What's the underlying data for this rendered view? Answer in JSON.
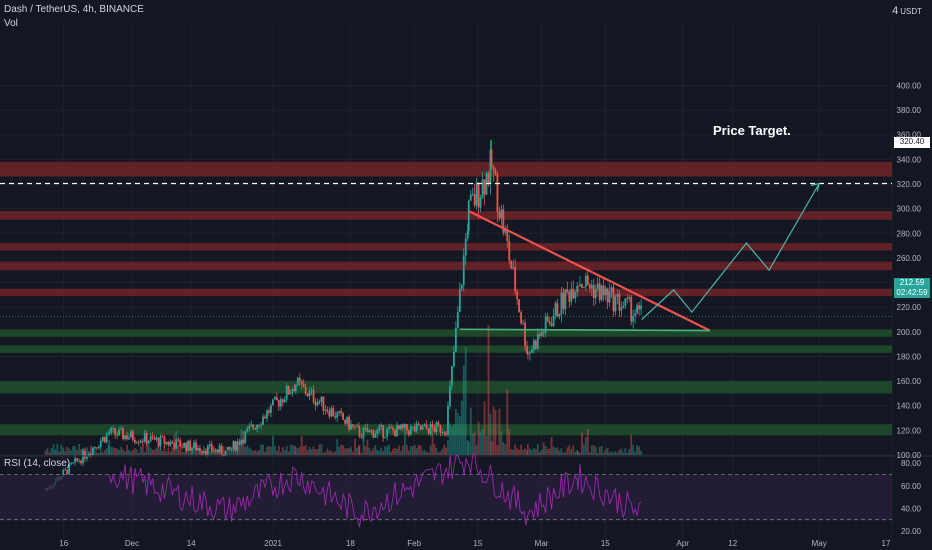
{
  "header": {
    "title": "Dash / TetherUS, 4h, BINANCE",
    "volume_label": "Vol",
    "currency": "USDT",
    "currency_prefix": "4"
  },
  "price_target_label": "Price Target.",
  "target_price": "320.40",
  "current_price": "212.59",
  "countdown": "02:42:59",
  "colors": {
    "background": "#131722",
    "up": "#26a69a",
    "down": "#ef5350",
    "resistance_zone": "#6b2228",
    "support_zone": "#1f4d2b",
    "trendline_down": "#f0524f",
    "trendline_support": "#4caf7e",
    "projection": "#4db6ac",
    "rsi_line": "#9c27b0",
    "rsi_band": "#2a1f3d"
  },
  "chart_data": [
    {
      "type": "candlestick",
      "title": "Dash / TetherUS, 4h, BINANCE",
      "x_tick_labels": [
        "16",
        "Dec",
        "14",
        "2021",
        "18",
        "Feb",
        "15",
        "Mar",
        "15",
        "Apr",
        "12",
        "May",
        "17"
      ],
      "y_tick_labels": [
        "100.00",
        "120.00",
        "140.00",
        "160.00",
        "180.00",
        "200.00",
        "220.00",
        "240.00",
        "260.00",
        "280.00",
        "300.00",
        "320.00",
        "340.00",
        "360.00",
        "380.00",
        "400.00"
      ],
      "ylim": [
        100,
        405
      ],
      "key_points": [
        {
          "date": "2020-11-12",
          "price": 72
        },
        {
          "date": "2020-11-26",
          "price": 118
        },
        {
          "date": "2020-12-22",
          "price": 102
        },
        {
          "date": "2021-01-06",
          "price": 158
        },
        {
          "date": "2021-01-20",
          "price": 118
        },
        {
          "date": "2021-02-08",
          "price": 122
        },
        {
          "date": "2021-02-13",
          "price": 298
        },
        {
          "date": "2021-02-18",
          "price": 335
        },
        {
          "date": "2021-02-26",
          "price": 183
        },
        {
          "date": "2021-03-09",
          "price": 243
        },
        {
          "date": "2021-03-23",
          "price": 212.59
        }
      ],
      "horizontal_levels": [
        {
          "type": "resistance",
          "low": 326,
          "high": 338
        },
        {
          "type": "resistance",
          "low": 291,
          "high": 298
        },
        {
          "type": "resistance",
          "low": 266,
          "high": 272
        },
        {
          "type": "resistance",
          "low": 250,
          "high": 257
        },
        {
          "type": "resistance",
          "low": 229,
          "high": 235
        },
        {
          "type": "support",
          "low": 196,
          "high": 202
        },
        {
          "type": "support",
          "low": 183,
          "high": 189
        },
        {
          "type": "support",
          "low": 150,
          "high": 160
        },
        {
          "type": "support",
          "low": 116,
          "high": 125
        }
      ],
      "trendlines": [
        {
          "name": "descending",
          "from": {
            "date": "2021-02-13",
            "price": 298
          },
          "to": {
            "date": "2021-04-07",
            "price": 201
          }
        },
        {
          "name": "support",
          "from": {
            "date": "2021-02-11",
            "price": 202
          },
          "to": {
            "date": "2021-04-07",
            "price": 201
          }
        }
      ],
      "projection_path": [
        {
          "date": "2021-03-23",
          "price": 210
        },
        {
          "date": "2021-03-30",
          "price": 234
        },
        {
          "date": "2021-04-03",
          "price": 216
        },
        {
          "date": "2021-04-15",
          "price": 272
        },
        {
          "date": "2021-04-20",
          "price": 250
        },
        {
          "date": "2021-05-01",
          "price": 320.4
        }
      ],
      "target_level": 320.4,
      "current_price": 212.59,
      "volume": "shown as histogram at bottom, spike in February"
    },
    {
      "type": "line",
      "title": "RSI (14, close)",
      "y_tick_labels": [
        "20.00",
        "40.00",
        "60.00",
        "80.00"
      ],
      "ylim": [
        20,
        90
      ],
      "band": [
        30,
        70
      ],
      "points": [
        {
          "date": "2020-11-26",
          "value": 72
        },
        {
          "date": "2020-12-22",
          "value": 38
        },
        {
          "date": "2021-01-06",
          "value": 70
        },
        {
          "date": "2021-01-20",
          "value": 35
        },
        {
          "date": "2021-02-13",
          "value": 85
        },
        {
          "date": "2021-02-26",
          "value": 36
        },
        {
          "date": "2021-03-09",
          "value": 68
        },
        {
          "date": "2021-03-23",
          "value": 35
        }
      ]
    }
  ]
}
